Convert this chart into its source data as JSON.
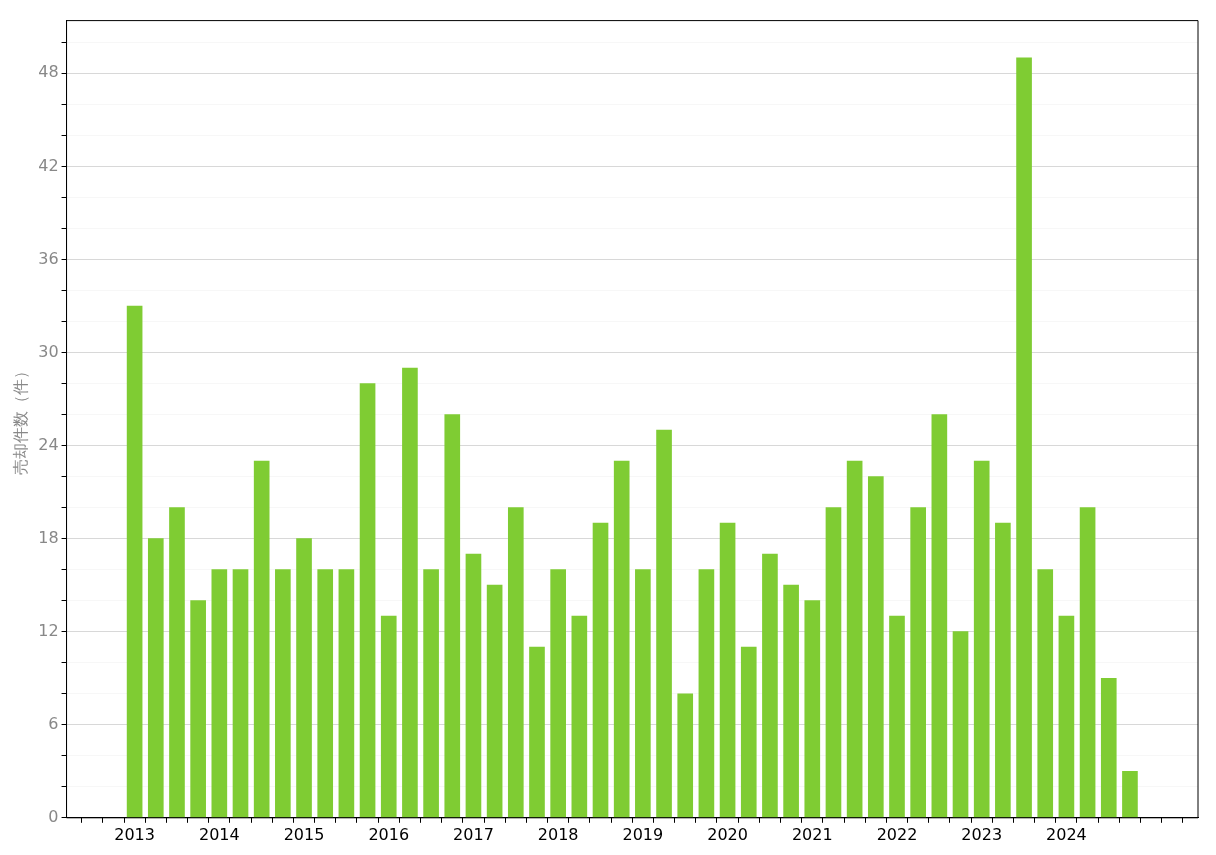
{
  "chart_data": {
    "type": "bar",
    "ylabel": "売却件数（件）",
    "categories": [
      "2013",
      null,
      null,
      null,
      "2014",
      null,
      null,
      null,
      "2015",
      null,
      null,
      null,
      "2016",
      null,
      null,
      null,
      "2017",
      null,
      null,
      null,
      "2018",
      null,
      null,
      null,
      "2019",
      null,
      null,
      null,
      "2020",
      null,
      null,
      null,
      "2021",
      null,
      null,
      null,
      "2022",
      null,
      null,
      null,
      "2023",
      null,
      null,
      null,
      "2024",
      null,
      null,
      null
    ],
    "values": [
      33,
      18,
      20,
      14,
      16,
      16,
      23,
      16,
      18,
      16,
      16,
      28,
      13,
      29,
      16,
      26,
      17,
      15,
      20,
      11,
      16,
      13,
      19,
      23,
      16,
      25,
      8,
      16,
      19,
      11,
      17,
      15,
      14,
      20,
      23,
      22,
      13,
      20,
      26,
      12,
      23,
      19,
      49,
      16,
      13,
      20,
      9,
      3
    ],
    "color": "#7fcc33",
    "ylim": [
      0,
      51.4
    ],
    "yticks": [
      0,
      {
        "value": 2,
        "label": null
      },
      {
        "value": 4,
        "label": null
      },
      6,
      {
        "value": 8,
        "label": null
      },
      {
        "value": 10,
        "label": null
      },
      12,
      {
        "value": 14,
        "label": null
      },
      {
        "value": 16,
        "label": null
      },
      18,
      {
        "value": 20,
        "label": null
      },
      {
        "value": 22,
        "label": null
      },
      24,
      {
        "value": 26,
        "label": null
      },
      {
        "value": 28,
        "label": null
      },
      30,
      {
        "value": 32,
        "label": null
      },
      {
        "value": 34,
        "label": null
      },
      36,
      {
        "value": 38,
        "label": null
      },
      {
        "value": 40,
        "label": null
      },
      42,
      {
        "value": 44,
        "label": null
      },
      {
        "value": 46,
        "label": null
      },
      48,
      {
        "value": 50,
        "label": null
      }
    ],
    "grid": "y",
    "legend": false
  }
}
